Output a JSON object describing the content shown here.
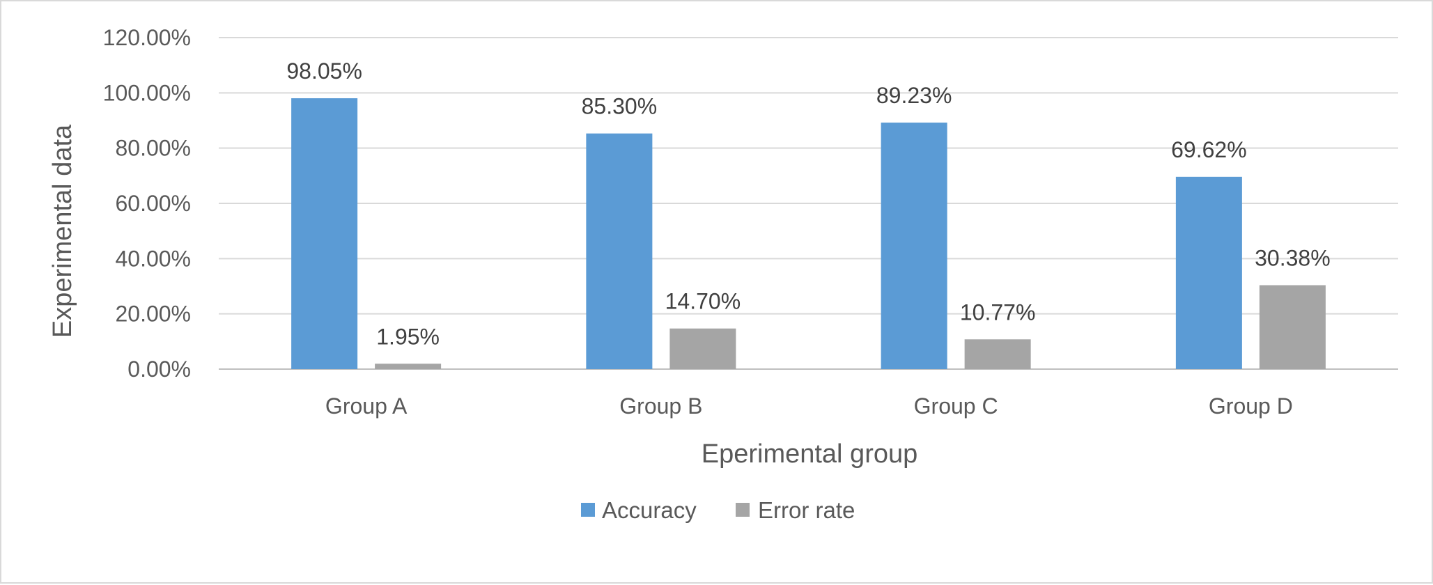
{
  "chart_data": {
    "type": "bar",
    "categories": [
      "Group A",
      "Group B",
      "Group C",
      "Group D"
    ],
    "series": [
      {
        "name": "Accuracy",
        "values": [
          98.05,
          85.3,
          89.23,
          69.62
        ],
        "labels": [
          "98.05%",
          "85.30%",
          "89.23%",
          "69.62%"
        ],
        "color": "#5b9bd5"
      },
      {
        "name": "Error rate",
        "values": [
          1.95,
          14.7,
          10.77,
          30.38
        ],
        "labels": [
          "1.95%",
          "14.70%",
          "10.77%",
          "30.38%"
        ],
        "color": "#a5a5a5"
      }
    ],
    "title": "",
    "xlabel": "Eperimental group",
    "ylabel": "Experimental data",
    "ylim": [
      0,
      120
    ],
    "yticks": [
      0,
      20,
      40,
      60,
      80,
      100,
      120
    ],
    "ytick_labels": [
      "0.00%",
      "20.00%",
      "40.00%",
      "60.00%",
      "80.00%",
      "100.00%",
      "120.00%"
    ],
    "grid": true,
    "legend_position": "bottom"
  }
}
